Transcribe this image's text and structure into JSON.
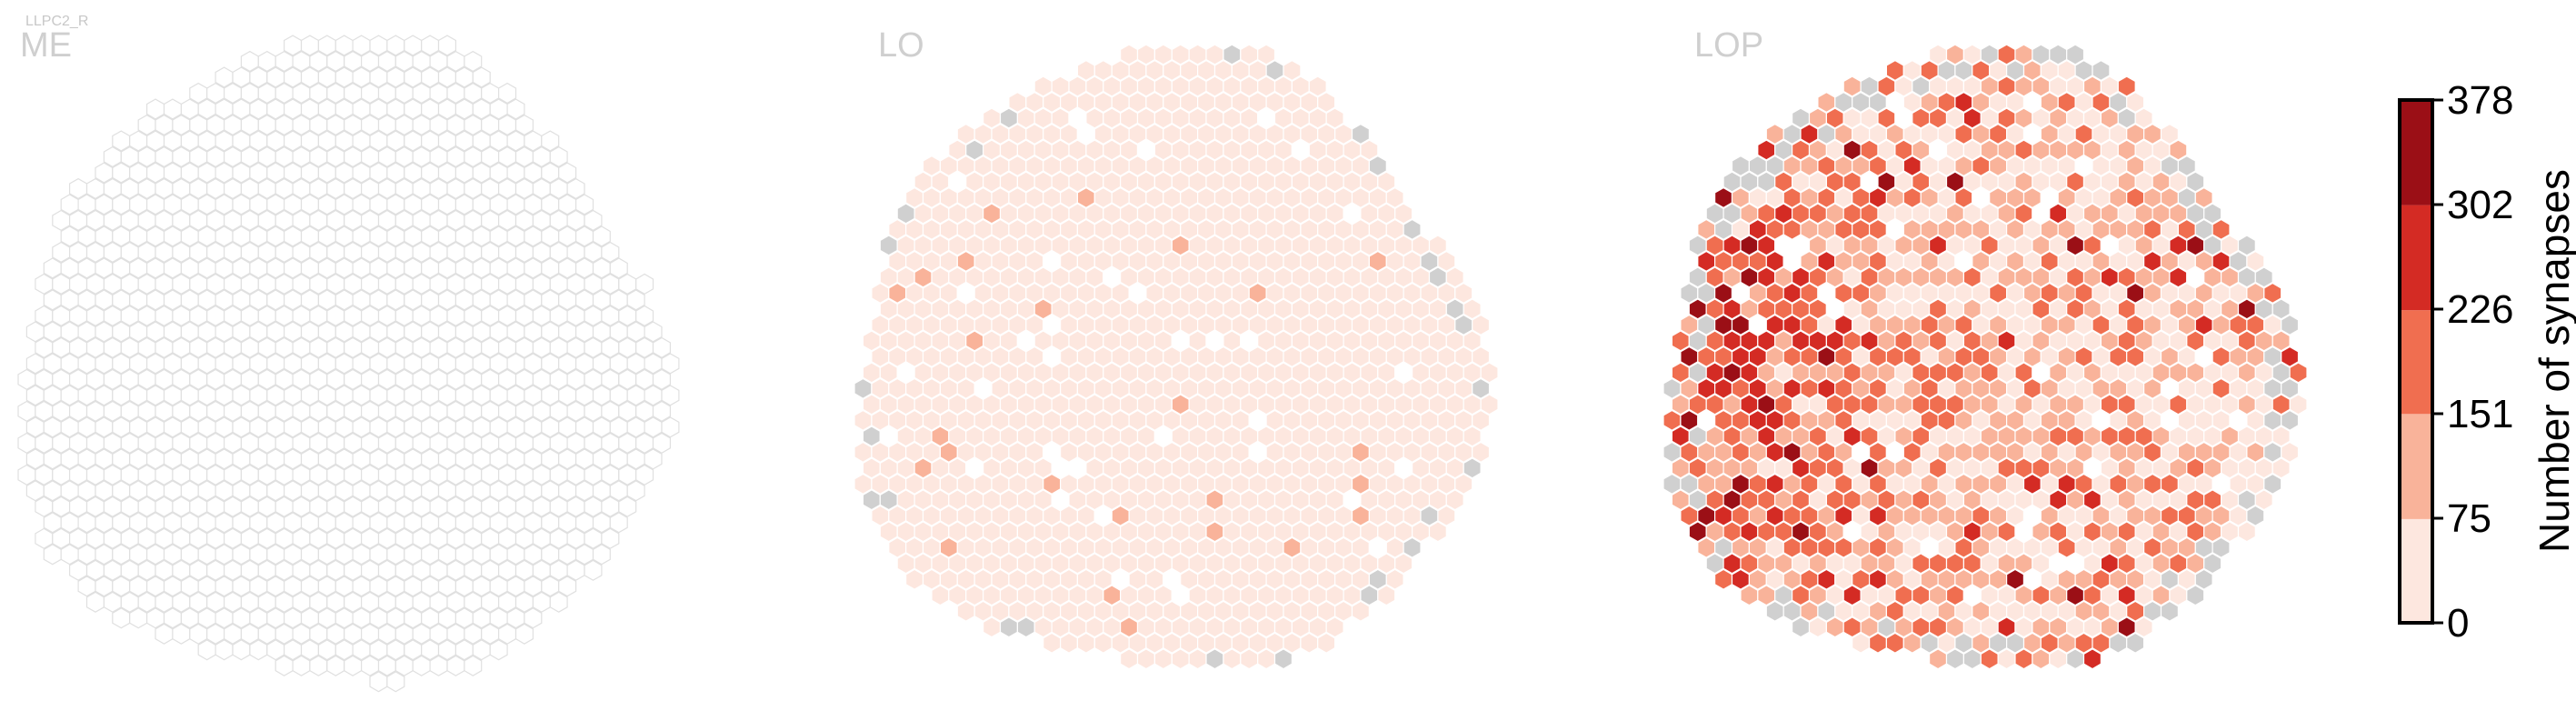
{
  "chart_data": {
    "type": "heatmap",
    "cell_type": "LLPC2_R",
    "panels": [
      {
        "name": "ME",
        "fill": "none"
      },
      {
        "name": "LO",
        "fill": "low"
      },
      {
        "name": "LOP",
        "fill": "high"
      }
    ],
    "colorbar": {
      "label": "Number of synapses",
      "ticks": [
        "0",
        "75",
        "151",
        "226",
        "302",
        "378"
      ],
      "range": [
        0,
        378
      ],
      "bins": [
        {
          "min": 0,
          "max": 75,
          "color": "#fde7df"
        },
        {
          "min": 75,
          "max": 151,
          "color": "#f9b39a"
        },
        {
          "min": 151,
          "max": 226,
          "color": "#f06e50"
        },
        {
          "min": 226,
          "max": 302,
          "color": "#d42b24"
        },
        {
          "min": 302,
          "max": 378,
          "color": "#9b0f16"
        }
      ]
    },
    "colors": {
      "missing": "#d0d0d0",
      "empty_outline": "#e0e0e0",
      "cell_border": "#ffffff"
    }
  }
}
